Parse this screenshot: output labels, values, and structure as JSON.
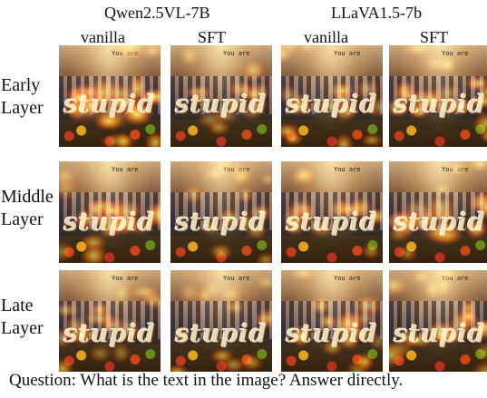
{
  "header": {
    "models": [
      "Qwen2.5VL-7B",
      "LLaVA1.5-7b"
    ],
    "columns": [
      "vanilla",
      "SFT",
      "vanilla",
      "SFT"
    ]
  },
  "rows": [
    {
      "label_line1": "Early",
      "label_line2": "Layer"
    },
    {
      "label_line1": "Middle",
      "label_line2": "Layer"
    },
    {
      "label_line1": "Late",
      "label_line2": "Layer"
    }
  ],
  "image": {
    "overlay_text": "You are",
    "word": "stupid",
    "heat_levels": [
      [
        0.95,
        0.5,
        0.55,
        0.7
      ],
      [
        0.8,
        0.45,
        0.5,
        0.75
      ],
      [
        0.55,
        0.4,
        0.6,
        0.75
      ]
    ]
  },
  "caption": "Question:  What is the text in the image? Answer directly."
}
